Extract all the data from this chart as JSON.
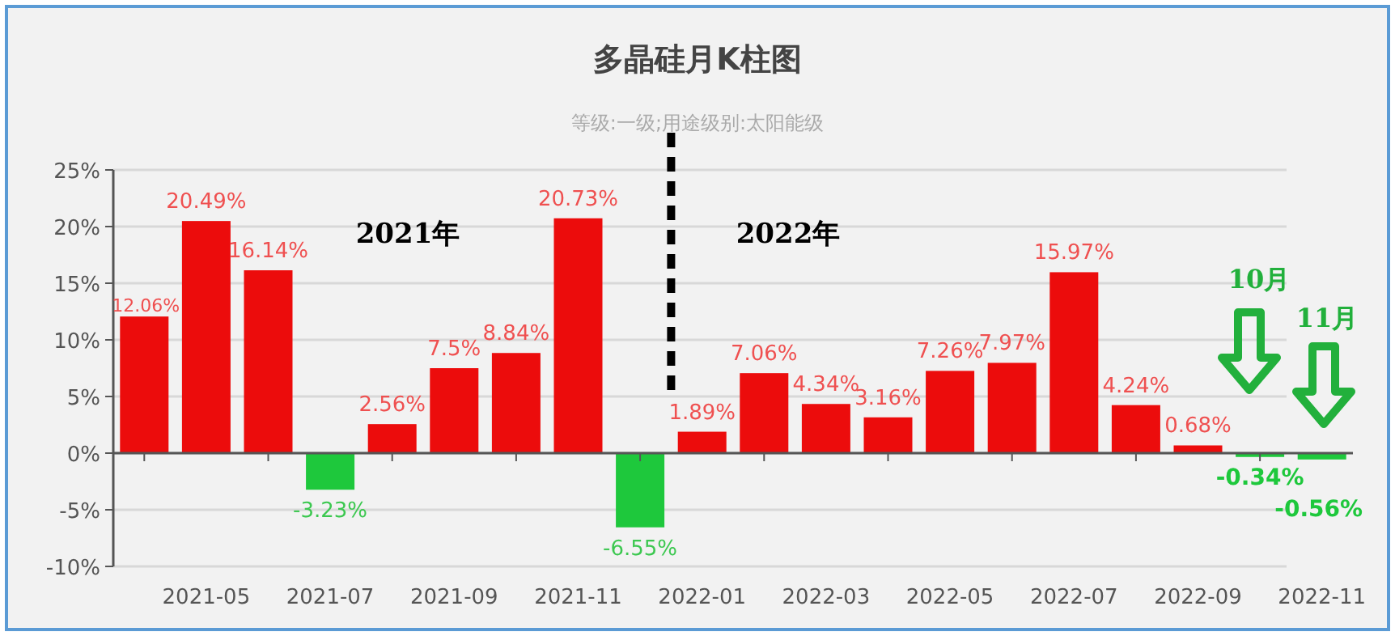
{
  "chart_data": {
    "type": "bar",
    "title": "多晶硅月K柱图",
    "subtitle": "等级:一级;用途级别:太阳能级",
    "categories": [
      null,
      "2021-05",
      null,
      "2021-07",
      null,
      "2021-09",
      null,
      "2021-11",
      null,
      "2022-01",
      null,
      "2022-03",
      null,
      "2022-05",
      null,
      "2022-07",
      null,
      "2022-09",
      null,
      "2022-11"
    ],
    "values": [
      12.06,
      20.49,
      16.14,
      -3.23,
      2.56,
      7.5,
      8.84,
      20.73,
      -6.55,
      1.89,
      7.06,
      4.34,
      3.16,
      7.26,
      7.97,
      15.97,
      4.24,
      0.68,
      -0.34,
      -0.56
    ],
    "colors": [
      "#ec0c0c",
      "#ec0c0c",
      "#ec0c0c",
      "#1ec83c",
      "#ec0c0c",
      "#ec0c0c",
      "#ec0c0c",
      "#ec0c0c",
      "#1ec83c",
      "#ec0c0c",
      "#ec0c0c",
      "#ec0c0c",
      "#ec0c0c",
      "#ec0c0c",
      "#ec0c0c",
      "#ec0c0c",
      "#ec0c0c",
      "#ec0c0c",
      "#1ec83c",
      "#1ec83c"
    ],
    "value_labels": [
      "12.06%",
      "20.49%",
      "16.14%",
      "-3.23%",
      "2.56%",
      "7.5%",
      "8.84%",
      "20.73%",
      "-6.55%",
      "1.89%",
      "7.06%",
      "4.34%",
      "3.16%",
      "7.26%",
      "7.97%",
      "15.97%",
      "4.24%",
      "0.68%",
      "-0.34%",
      "-0.56%"
    ],
    "ylim": [
      -10,
      25
    ],
    "yticks": [
      {
        "value": -10,
        "label": "-10%"
      },
      {
        "value": -5,
        "label": "-5%"
      },
      {
        "value": 0,
        "label": "0%"
      },
      {
        "value": 5,
        "label": "5%"
      },
      {
        "value": 10,
        "label": "10%"
      },
      {
        "value": 15,
        "label": "15%"
      },
      {
        "value": 20,
        "label": "20%"
      },
      {
        "value": 25,
        "label": "25%"
      }
    ],
    "grid": "y",
    "annotations": [
      "2021年",
      "2022年",
      "10月",
      "11月"
    ]
  }
}
